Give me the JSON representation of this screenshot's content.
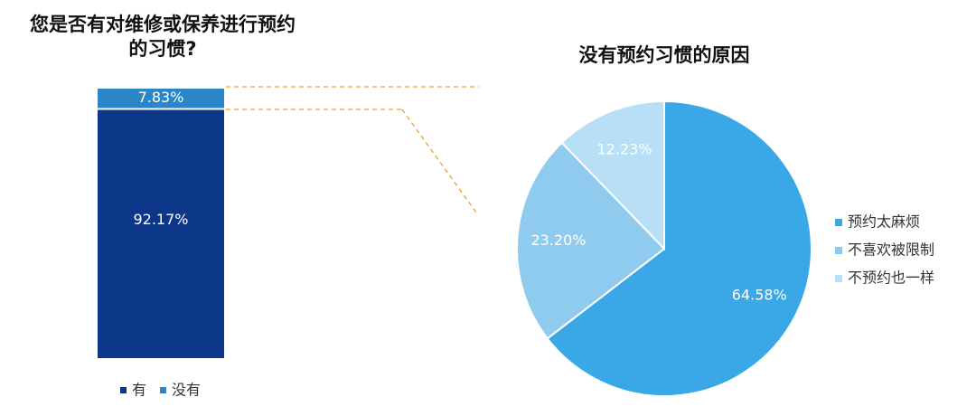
{
  "chart_data": [
    {
      "type": "stacked-bar",
      "title": "您是否有对维修或保养进行预约的习惯?",
      "series": [
        {
          "name": "有",
          "color": "#0c3687",
          "values": [
            92.17
          ],
          "value_labels": [
            "92.17%"
          ]
        },
        {
          "name": "没有",
          "color": "#2a86c7",
          "values": [
            7.83
          ],
          "value_labels": [
            "7.83%"
          ]
        }
      ]
    },
    {
      "type": "pie",
      "title": "没有预约习惯的原因",
      "categories": [
        "预约太麻烦",
        "不喜欢被限制",
        "不预约也一样"
      ],
      "values": [
        64.58,
        23.2,
        12.23
      ],
      "value_labels": [
        "64.58%",
        "23.20%",
        "12.23%"
      ],
      "colors": [
        "#3aa8e6",
        "#8ecbef",
        "#b7dff6"
      ]
    }
  ]
}
